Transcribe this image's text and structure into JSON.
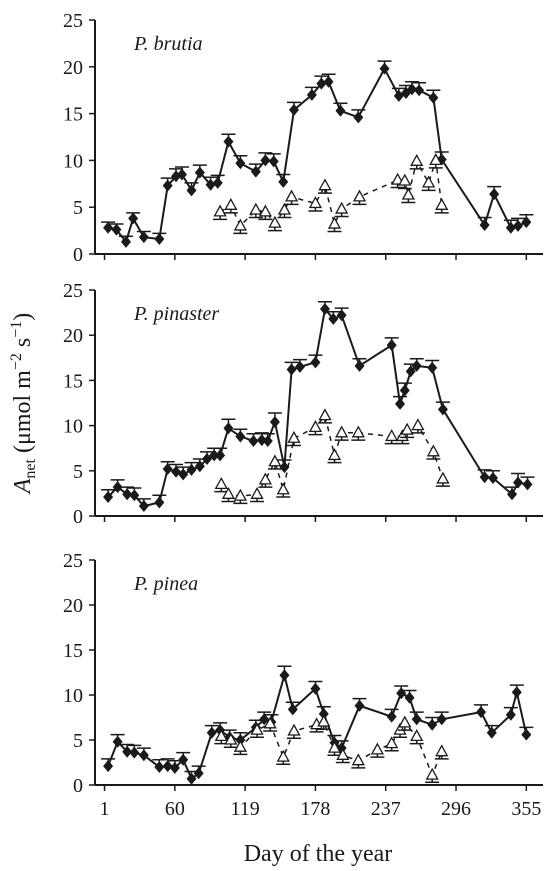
{
  "chart_data": [
    {
      "type": "line",
      "label": "P. brutia",
      "xlim": [
        -7,
        369
      ],
      "ylim": [
        0,
        25
      ],
      "yticks": [
        0,
        5,
        10,
        15,
        20,
        25
      ],
      "xticks": [
        1,
        60,
        119,
        178,
        237,
        296,
        355
      ],
      "xtick_labels": false,
      "series": [
        {
          "color": "#1a1a1a",
          "marker": "diamond",
          "linestyle": "solid",
          "error_direction": "up",
          "x": [
            4,
            11,
            19,
            25,
            34,
            47,
            54,
            61,
            66,
            74,
            81,
            90,
            96,
            105,
            115,
            128,
            136,
            143,
            151,
            160,
            175,
            183,
            189,
            199,
            214,
            236,
            248,
            254,
            259,
            265,
            277,
            284,
            320,
            328,
            342,
            348,
            355
          ],
          "values": [
            2.8,
            2.6,
            1.3,
            3.8,
            1.8,
            1.6,
            7.3,
            8.3,
            8.5,
            6.8,
            8.7,
            7.4,
            7.6,
            12,
            9.7,
            8.8,
            10,
            9.9,
            7.7,
            15.4,
            17,
            18.2,
            18.4,
            15.3,
            14.6,
            19.8,
            16.9,
            17.2,
            17.6,
            17.5,
            16.7,
            10.1,
            3.1,
            6.4,
            2.8,
            3,
            3.4
          ],
          "errors": [
            0.6,
            0.6,
            0.6,
            0.6,
            0.6,
            0.6,
            0.8,
            0.8,
            0.8,
            0.8,
            0.8,
            0.8,
            0.8,
            0.8,
            0.8,
            0.8,
            0.8,
            0.8,
            0.8,
            0.8,
            0.8,
            0.8,
            0.8,
            0.8,
            0.8,
            0.8,
            0.8,
            0.8,
            0.8,
            0.8,
            0.8,
            0.8,
            0.8,
            0.8,
            0.8,
            0.8,
            0.8
          ]
        },
        {
          "color": "#1a1a1a",
          "marker": "triangle",
          "linestyle": "dashed",
          "error_direction": "down",
          "x": [
            98,
            107,
            115,
            128,
            136,
            144,
            152,
            158,
            178,
            186,
            194,
            200,
            215,
            247,
            253,
            256,
            263,
            273,
            279,
            284
          ],
          "values": [
            4.5,
            5.2,
            3,
            4.7,
            4.5,
            3.3,
            4.7,
            6.1,
            5.4,
            7.3,
            3.2,
            4.8,
            6.1,
            7.9,
            7.8,
            6.3,
            9.9,
            7.6,
            10,
            5.2
          ],
          "errors": [
            0.8,
            0.8,
            0.8,
            0.8,
            0.8,
            0.8,
            0.8,
            0.8,
            0.8,
            0.8,
            0.8,
            0.8,
            0.8,
            0.8,
            0.8,
            0.8,
            0.8,
            0.8,
            0.8,
            0.8
          ]
        }
      ]
    },
    {
      "type": "line",
      "label": "P. pinaster",
      "xlim": [
        -7,
        369
      ],
      "ylim": [
        0,
        25
      ],
      "yticks": [
        0,
        5,
        10,
        15,
        20,
        25
      ],
      "xticks": [
        1,
        60,
        119,
        178,
        237,
        296,
        355
      ],
      "xtick_labels": false,
      "ylabel": {
        "symbol": "A",
        "subscript": "net",
        "unit": " (μmol m",
        "exp1": "−2",
        "unit2": " s",
        "exp2": "−1",
        "close": ")"
      },
      "series": [
        {
          "color": "#1a1a1a",
          "marker": "diamond",
          "linestyle": "solid",
          "error_direction": "up",
          "x": [
            4,
            12,
            20,
            26,
            34,
            47,
            54,
            61,
            67,
            74,
            81,
            87,
            93,
            98,
            105,
            115,
            126,
            133,
            138,
            144,
            152,
            158,
            165,
            178,
            186,
            193,
            200,
            215,
            242,
            249,
            253,
            258,
            263,
            276,
            285,
            320,
            327,
            343,
            348,
            356
          ],
          "values": [
            2.1,
            3.2,
            2.4,
            2.3,
            1.1,
            1.5,
            5.2,
            4.9,
            4.6,
            5.1,
            5.5,
            6.3,
            6.7,
            6.7,
            9.7,
            8.8,
            8.3,
            8.4,
            8.3,
            10.4,
            5.4,
            16.2,
            16.5,
            17,
            22.9,
            21.8,
            22.2,
            16.6,
            18.9,
            12.4,
            13.9,
            16,
            16.6,
            16.4,
            11.8,
            4.3,
            4.2,
            2.4,
            3.7,
            3.5
          ],
          "errors": [
            0.8,
            0.8,
            0.8,
            0.8,
            0.8,
            0.8,
            0.8,
            0.8,
            0.8,
            0.8,
            0.8,
            0.8,
            0.8,
            0.8,
            1,
            0.8,
            0.8,
            0.8,
            0.8,
            1,
            0.8,
            0.8,
            0.8,
            0.8,
            0.8,
            0.8,
            0.8,
            0.8,
            0.8,
            0.8,
            0.8,
            0.8,
            0.8,
            0.8,
            0.8,
            0.8,
            0.8,
            0.8,
            1,
            0.8
          ]
        },
        {
          "color": "#1a1a1a",
          "marker": "triangle",
          "linestyle": "dashed",
          "error_direction": "down",
          "x": [
            99,
            105,
            115,
            129,
            136,
            144,
            151,
            160,
            178,
            186,
            194,
            200,
            214,
            242,
            251,
            255,
            264,
            277,
            285
          ],
          "values": [
            3.5,
            2.4,
            2.2,
            2.4,
            4,
            6,
            2.9,
            8.6,
            9.8,
            11.1,
            6.7,
            9.2,
            9.2,
            8.8,
            8.8,
            9.5,
            10,
            7.1,
            4.1
          ],
          "errors": [
            0.8,
            0.8,
            0.8,
            0.8,
            0.8,
            0.8,
            0.8,
            0.8,
            0.8,
            0.8,
            0.8,
            0.8,
            0.8,
            0.8,
            0.8,
            0.8,
            0.8,
            0.8,
            0.8
          ]
        }
      ]
    },
    {
      "type": "line",
      "label": "P. pinea",
      "xlim": [
        -7,
        369
      ],
      "ylim": [
        0,
        25
      ],
      "yticks": [
        0,
        5,
        10,
        15,
        20,
        25
      ],
      "xticks": [
        1,
        60,
        119,
        178,
        237,
        296,
        355
      ],
      "xtick_labels": true,
      "xlabel": "Day of the year",
      "series": [
        {
          "color": "#1a1a1a",
          "marker": "diamond",
          "linestyle": "solid",
          "error_direction": "up",
          "x": [
            4,
            12,
            20,
            26,
            34,
            47,
            54,
            60,
            67,
            74,
            80,
            91,
            98,
            106,
            115,
            128,
            135,
            141,
            152,
            159,
            178,
            185,
            194,
            200,
            215,
            242,
            250,
            257,
            263,
            276,
            284,
            317,
            326,
            342,
            347,
            355
          ],
          "values": [
            2.1,
            4.8,
            3.7,
            3.6,
            3.3,
            2,
            2.1,
            1.9,
            2.8,
            0.7,
            1.3,
            5.8,
            6.1,
            5.3,
            5,
            6.4,
            7.3,
            7,
            12.2,
            8.4,
            10.7,
            7.9,
            4.7,
            4.1,
            8.8,
            7.6,
            10.2,
            9.7,
            7.3,
            6.7,
            7.3,
            8.1,
            5.8,
            7.8,
            10.3,
            5.6
          ],
          "errors": [
            0.8,
            0.8,
            0.8,
            0.8,
            0.8,
            0.8,
            0.8,
            0.8,
            0.8,
            0.8,
            0.8,
            0.8,
            0.8,
            0.8,
            0.8,
            0.8,
            0.8,
            0.8,
            1,
            0.8,
            0.8,
            0.8,
            0.8,
            0.8,
            0.8,
            0.8,
            0.8,
            0.8,
            0.8,
            0.8,
            0.8,
            0.8,
            0.8,
            0.8,
            0.8,
            0.8
          ]
        },
        {
          "color": "#1a1a1a",
          "marker": "triangle",
          "linestyle": "dashed",
          "error_direction": "down",
          "x": [
            99,
            107,
            115,
            129,
            140,
            151,
            160,
            179,
            185,
            194,
            201,
            214,
            230,
            242,
            249,
            253,
            263,
            276,
            284
          ],
          "values": [
            5.4,
            5,
            4.2,
            6.1,
            6.8,
            3.1,
            6,
            6.7,
            7,
            4.1,
            3.3,
            2.7,
            3.9,
            4.6,
            6.1,
            6.9,
            5.4,
            1.1,
            3.7
          ],
          "errors": [
            0.8,
            0.8,
            0.8,
            0.8,
            0.8,
            0.8,
            0.8,
            0.8,
            0.8,
            0.8,
            0.8,
            0.8,
            0.8,
            0.8,
            0.8,
            0.8,
            0.8,
            0.8,
            0.8
          ]
        }
      ]
    }
  ]
}
